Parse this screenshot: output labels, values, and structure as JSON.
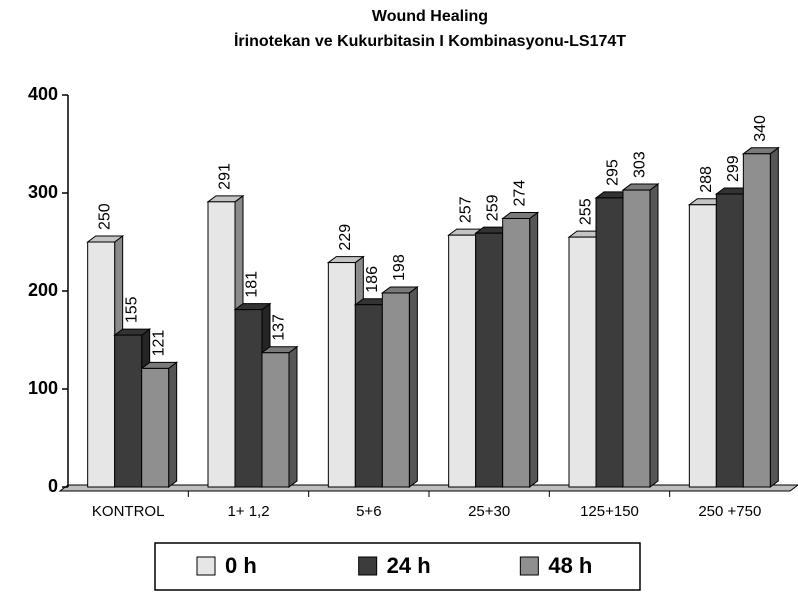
{
  "chart_data": {
    "type": "bar3d",
    "title": "Wound Healing",
    "subtitle": "İrinotekan ve Kukurbitasin I Kombinasyonu-LS174T",
    "categories": [
      "KONTROL",
      "1+ 1,2",
      "5+6",
      "25+30",
      "125+150",
      "250 +750"
    ],
    "series": [
      {
        "name": "0 h",
        "color": "#e6e6e6",
        "values": [
          250,
          291,
          229,
          257,
          255,
          288
        ]
      },
      {
        "name": "24 h",
        "color": "#3c3c3c",
        "values": [
          155,
          181,
          186,
          259,
          295,
          299
        ]
      },
      {
        "name": "48 h",
        "color": "#8f8f8f",
        "values": [
          121,
          137,
          198,
          274,
          303,
          340
        ]
      }
    ],
    "ylim": [
      0,
      400
    ],
    "yticks": [
      0,
      100,
      200,
      300,
      400
    ]
  }
}
